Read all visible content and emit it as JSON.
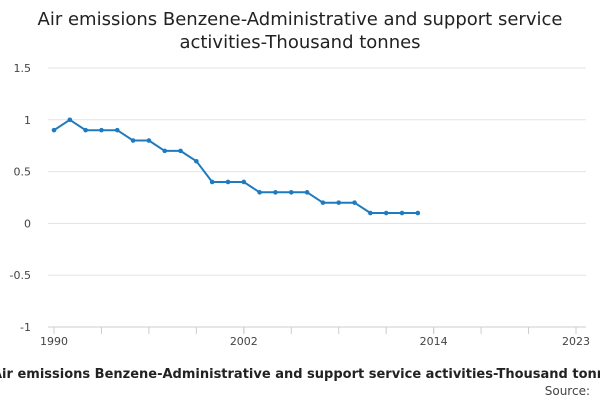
{
  "chart_data": {
    "type": "line",
    "title_line1": "Air emissions Benzene-Administrative and support service",
    "title_line2": "activities-Thousand tonnes",
    "xlabel": "",
    "ylabel": "",
    "x_ticks": [
      1990,
      2002,
      2014,
      2023
    ],
    "xlim": [
      1990,
      2023
    ],
    "y_ticks": [
      "1.5",
      "1",
      "0.5",
      "0",
      "-0.5",
      "-1"
    ],
    "ylim": [
      -1,
      1.5
    ],
    "grid": true,
    "series": [
      {
        "name": "Air emissions Benzene-Administrative and support service activities-Thousand tonnes",
        "color": "#1f7bbf",
        "x": [
          1990,
          1991,
          1992,
          1993,
          1994,
          1995,
          1996,
          1997,
          1998,
          1999,
          2000,
          2001,
          2002,
          2003,
          2004,
          2005,
          2006,
          2007,
          2008,
          2009,
          2010,
          2011,
          2012,
          2013
        ],
        "values": [
          0.9,
          1.0,
          0.9,
          0.9,
          0.9,
          0.8,
          0.8,
          0.7,
          0.7,
          0.6,
          0.4,
          0.4,
          0.4,
          0.3,
          0.3,
          0.3,
          0.3,
          0.2,
          0.2,
          0.2,
          0.1,
          0.1,
          0.1,
          0.1
        ]
      }
    ],
    "legend_label": "Air emissions Benzene-Administrative and support service activities-Thousand tonnes",
    "source_label": "Source:"
  }
}
